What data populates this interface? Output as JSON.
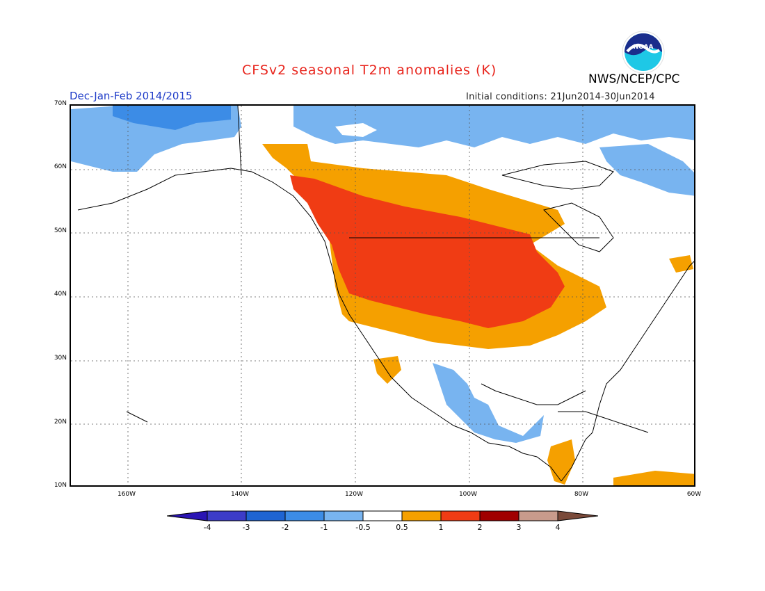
{
  "header": {
    "title": "CFSv2 seasonal T2m anomalies (K)",
    "season": "Dec-Jan-Feb 2014/2015",
    "initial_conditions": "Initial conditions: 21Jun2014-30Jun2014",
    "agency": "NWS/NCEP/CPC",
    "logo_text": "NOAA"
  },
  "map": {
    "lat_labels": [
      "70N",
      "60N",
      "50N",
      "40N",
      "30N",
      "20N",
      "10N"
    ],
    "lon_labels": [
      "160W",
      "140W",
      "120W",
      "100W",
      "80W",
      "60W"
    ],
    "region": "North America",
    "lon_range": [
      -170,
      -60
    ],
    "lat_range": [
      10,
      70
    ]
  },
  "colorbar": {
    "labels": [
      "-4",
      "-3",
      "-2",
      "-1",
      "-0.5",
      "0.5",
      "1",
      "2",
      "3",
      "4"
    ],
    "colors": [
      "#2a14b4",
      "#3c3cc8",
      "#1e64d2",
      "#3c8ce6",
      "#78b4f0",
      "#ffffff",
      "#f5a000",
      "#f03c14",
      "#a00000",
      "#c89b8c",
      "#7a4a3a"
    ]
  }
}
